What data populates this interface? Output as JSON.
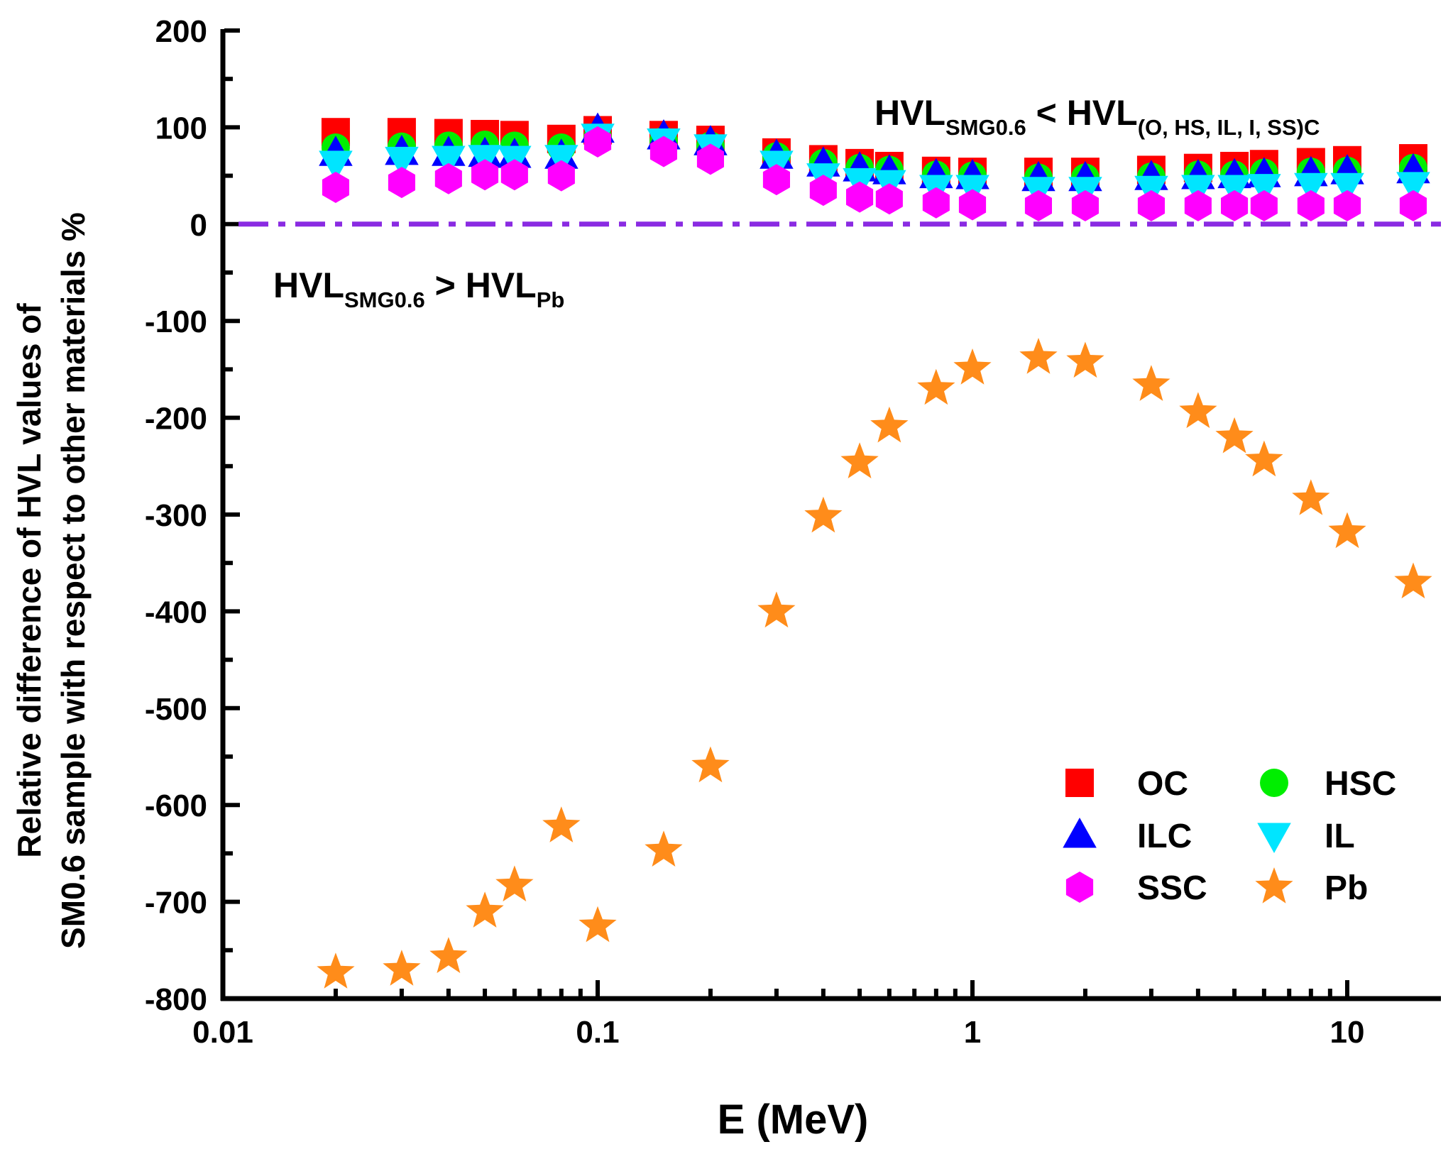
{
  "chart_data": {
    "type": "scatter",
    "xscale": "log",
    "xlabel": "E (MeV)",
    "ylabel_lines": [
      "Relative difference of HVL values of",
      "SM0.6 sample with respect to other materials %"
    ],
    "xlim": [
      0.01,
      16
    ],
    "ylim": [
      -800,
      200
    ],
    "x_ticks": [
      0.01,
      0.1,
      1,
      10
    ],
    "x_tick_labels": [
      "0.01",
      "0.1",
      "1",
      "10"
    ],
    "y_ticks": [
      200,
      100,
      0,
      -100,
      -200,
      -300,
      -400,
      -500,
      -600,
      -700,
      -800
    ],
    "y_tick_labels": [
      "200",
      "100",
      "0",
      "-100",
      "-200",
      "-300",
      "-400",
      "-500",
      "-600",
      "-700",
      "-800"
    ],
    "reference_line": {
      "y": 0,
      "color": "#8a2be2",
      "style": "dash-dot"
    },
    "annotations": [
      {
        "main": "HVL",
        "sub1": "SMG0.6",
        "rel": " < HVL",
        "sub2": "(O, HS, IL, I, SS)C",
        "x": 0.36,
        "y": 110
      },
      {
        "main": "HVL",
        "sub1": "SMG0.6",
        "rel": " > HVL",
        "sub2": "Pb",
        "x": 0.013,
        "y": -60
      }
    ],
    "x": [
      0.02,
      0.03,
      0.04,
      0.05,
      0.06,
      0.08,
      0.1,
      0.15,
      0.2,
      0.3,
      0.4,
      0.5,
      0.6,
      0.8,
      1,
      1.5,
      2,
      3,
      4,
      5,
      6,
      8,
      10,
      15
    ],
    "series": [
      {
        "name": "OC",
        "marker": "square",
        "color": "#ff0000",
        "values": [
          95,
          95,
          94,
          93,
          92,
          88,
          97,
          92,
          87,
          74,
          67,
          63,
          60,
          55,
          54,
          54,
          54,
          56,
          58,
          60,
          62,
          64,
          66,
          68
        ]
      },
      {
        "name": "HSC",
        "marker": "circle",
        "color": "#00ee00",
        "values": [
          79,
          80,
          81,
          82,
          81,
          79,
          90,
          86,
          81,
          70,
          63,
          58,
          56,
          51,
          50,
          48,
          48,
          49,
          51,
          51,
          53,
          54,
          55,
          58
        ]
      },
      {
        "name": "ILC",
        "marker": "triangle-up",
        "color": "#0000ff",
        "values": [
          73,
          74,
          73,
          72,
          71,
          70,
          97,
          90,
          84,
          70,
          62,
          57,
          54,
          50,
          49,
          47,
          47,
          48,
          49,
          50,
          51,
          52,
          54,
          55
        ]
      },
      {
        "name": "IL",
        "marker": "triangle-down",
        "color": "#00e5ff",
        "values": [
          63,
          67,
          68,
          69,
          68,
          69,
          91,
          86,
          80,
          63,
          50,
          45,
          43,
          38,
          38,
          36,
          36,
          37,
          38,
          38,
          39,
          40,
          40,
          41
        ]
      },
      {
        "name": "SSC",
        "marker": "hexagon",
        "color": "#ff00ff",
        "values": [
          38,
          43,
          47,
          51,
          51,
          50,
          85,
          75,
          67,
          46,
          35,
          28,
          26,
          22,
          20,
          19,
          19,
          19,
          19,
          19,
          19,
          19,
          19,
          19
        ]
      },
      {
        "name": "Pb",
        "marker": "star",
        "color": "#ff8c1a",
        "values": [
          -773,
          -770,
          -757,
          -710,
          -683,
          -622,
          -725,
          -647,
          -560,
          -400,
          -302,
          -246,
          -209,
          -170,
          -149,
          -138,
          -142,
          -166,
          -194,
          -220,
          -244,
          -284,
          -318,
          -370
        ]
      }
    ],
    "legend": {
      "position": "bottom-right",
      "columns": 2
    }
  }
}
